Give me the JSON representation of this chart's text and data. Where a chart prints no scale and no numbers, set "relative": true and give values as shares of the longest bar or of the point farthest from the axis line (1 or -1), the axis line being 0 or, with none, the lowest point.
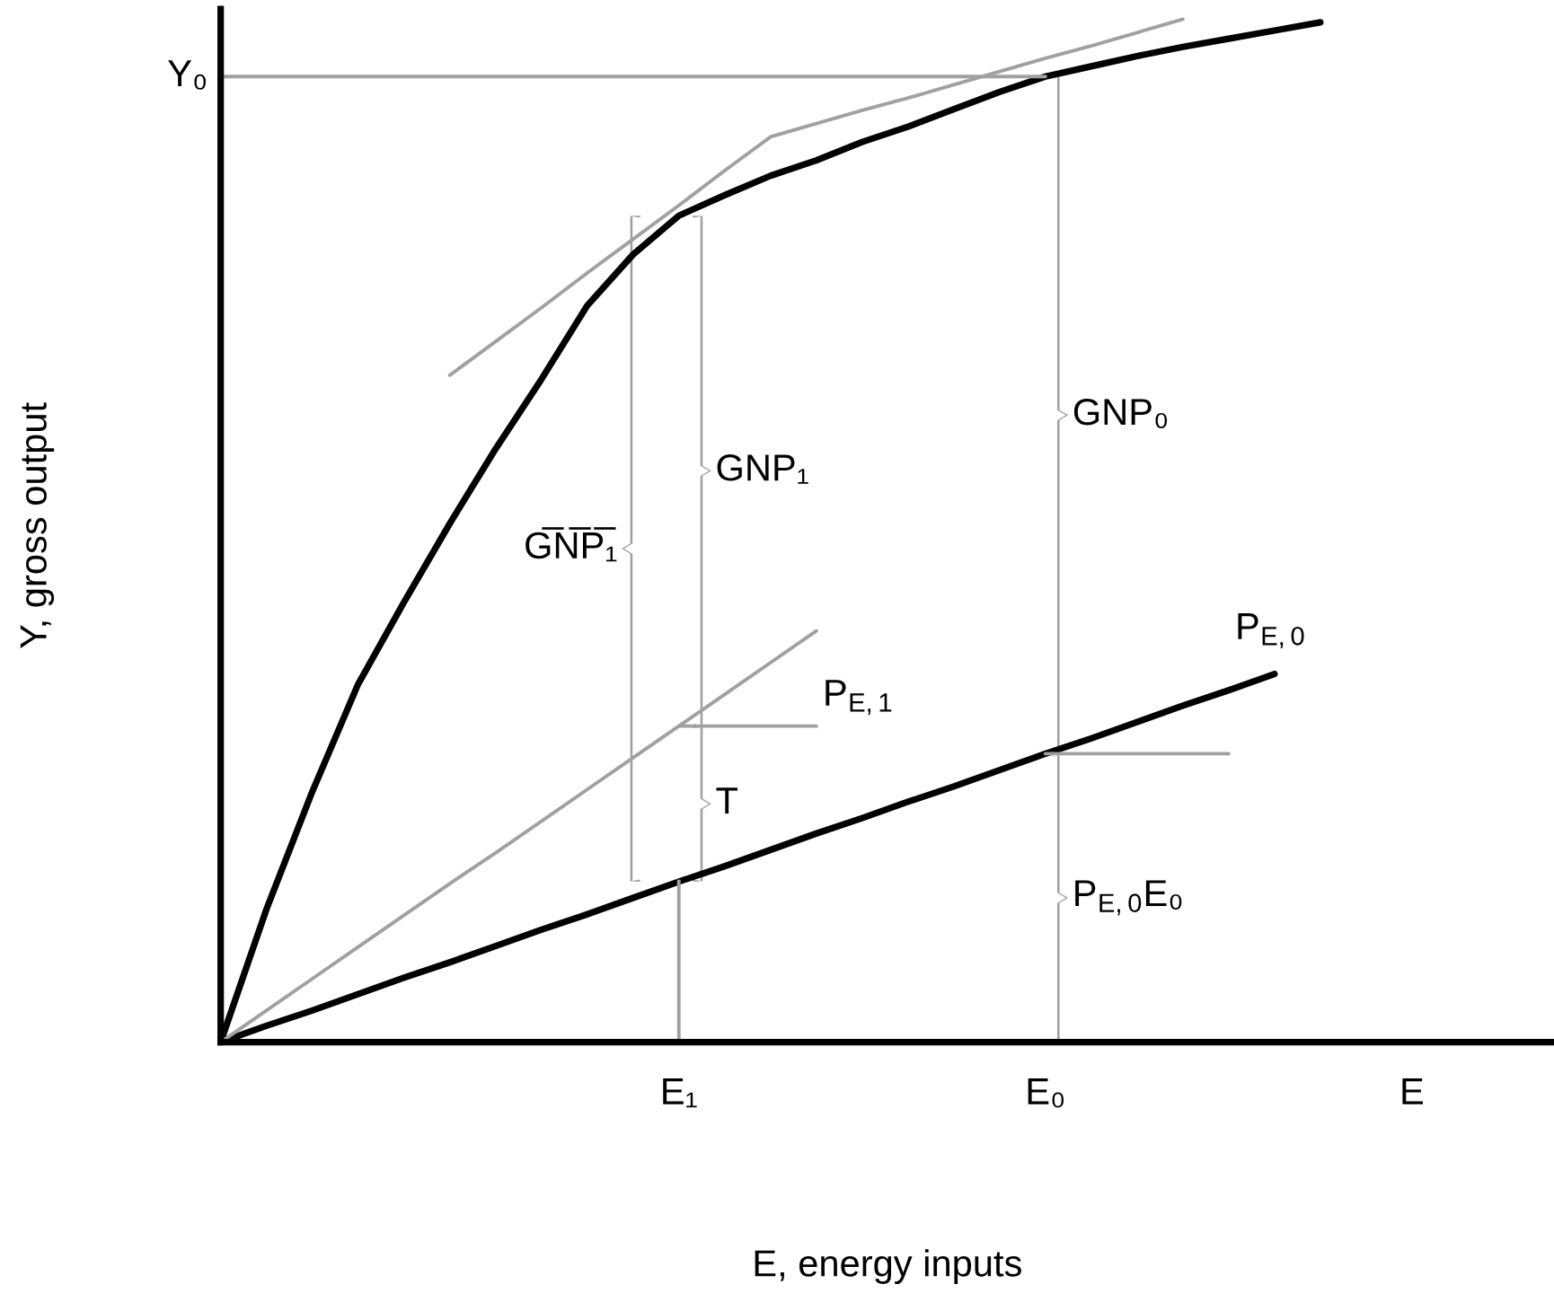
{
  "chart_data": {
    "type": "line",
    "relative": true,
    "xlabel": "E, energy inputs",
    "ylabel": "Y, gross output",
    "categories": [
      null,
      null,
      null,
      null,
      null,
      null,
      null,
      null,
      null,
      null,
      "E₁",
      null,
      null,
      null,
      null,
      null,
      null,
      null,
      "E₀",
      null,
      null,
      null,
      null,
      null,
      null,
      null,
      "E",
      null,
      null,
      null
    ],
    "grid": false,
    "series": [
      {
        "color": "#000000",
        "values": [
          0,
          0.13,
          0.245,
          0.35,
          0.43,
          0.507,
          0.58,
          0.648,
          0.72,
          0.77,
          0.808,
          0.828,
          0.847,
          0.862,
          0.88,
          0.895,
          0.912,
          0.929,
          0.944,
          0.954,
          0.964,
          0.973,
          0.981,
          0.989,
          0.997,
          null,
          null,
          null,
          null,
          null
        ]
      },
      {
        "color": "#000000",
        "values": [
          0,
          0.016,
          0.031,
          0.047,
          0.063,
          0.078,
          0.094,
          0.11,
          0.125,
          0.141,
          0.157,
          0.172,
          0.188,
          0.204,
          0.219,
          0.235,
          0.25,
          0.266,
          0.282,
          0.297,
          0.313,
          0.329,
          0.344,
          0.36,
          null,
          null,
          null,
          null,
          null,
          null
        ]
      },
      {
        "color": "#a0a0a0",
        "values": [
          0,
          0.031,
          0.062,
          0.093,
          0.124,
          0.155,
          0.185,
          0.216,
          0.247,
          0.278,
          0.309,
          0.34,
          0.371,
          0.402,
          null,
          null,
          null,
          null,
          null,
          null,
          null,
          null,
          null,
          null,
          null,
          null,
          null,
          null,
          null,
          null
        ]
      },
      {
        "color": "#a0a0a0",
        "values": [
          null,
          null,
          null,
          null,
          null,
          0.652,
          0.685,
          0.718,
          0.752,
          0.785,
          0.818,
          0.852,
          0.885,
          0.898,
          0.911,
          0.923,
          0.936,
          0.949,
          0.962,
          0.974,
          0.987,
          1,
          null,
          null,
          null,
          null,
          null,
          null,
          null,
          null
        ]
      },
      {
        "color": "#a0a0a0",
        "values": [
          0.944,
          0.944,
          0.944,
          0.944,
          0.944,
          0.944,
          0.944,
          0.944,
          0.944,
          0.944,
          0.944,
          0.944,
          0.944,
          0.944,
          0.944,
          0.944,
          0.944,
          0.944,
          0.944,
          null,
          null,
          null,
          null,
          null,
          null,
          null,
          null,
          null,
          null,
          null
        ]
      },
      {
        "color": "#a0a0a0",
        "values": [
          null,
          null,
          null,
          null,
          null,
          null,
          null,
          null,
          null,
          null,
          0.309,
          0.309,
          0.309,
          0.309,
          null,
          null,
          null,
          null,
          null,
          null,
          null,
          null,
          null,
          null,
          null,
          null,
          null,
          null,
          null,
          null
        ]
      },
      {
        "color": "#a0a0a0",
        "values": [
          null,
          null,
          null,
          null,
          null,
          null,
          null,
          null,
          null,
          null,
          null,
          null,
          null,
          null,
          null,
          null,
          null,
          null,
          0.282,
          0.282,
          0.282,
          0.282,
          0.282,
          null,
          null,
          null,
          null,
          null,
          null,
          null
        ]
      }
    ],
    "ref_lines": [
      {
        "axis": "x",
        "value": "E₁",
        "color": "#a0a0a0"
      }
    ],
    "annotations": [
      "Y₀",
      "GNP₁",
      "G̅N̅P̅₁",
      "GNP₀",
      "P$_{E,1}$",
      "T",
      "P$_{E,0}$",
      "P$_{E,0}$E₀"
    ]
  }
}
